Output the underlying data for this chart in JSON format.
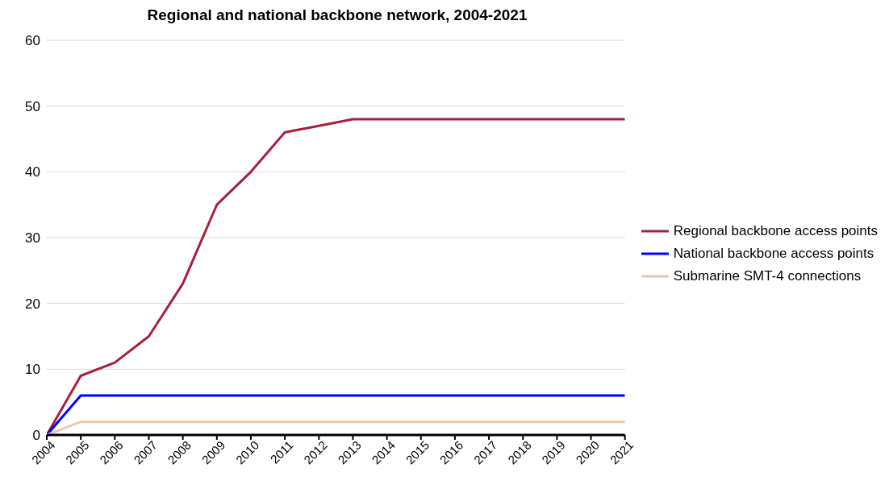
{
  "chart_data": {
    "type": "line",
    "title": "Regional and national backbone network, 2004-2021",
    "categories": [
      "2004",
      "2005",
      "2006",
      "2007",
      "2008",
      "2009",
      "2010",
      "2011",
      "2012",
      "2013",
      "2014",
      "2015",
      "2016",
      "2017",
      "2018",
      "2019",
      "2020",
      "2021"
    ],
    "series": [
      {
        "name": "Regional backbone access points",
        "color": "#a6213a",
        "values": [
          0,
          9,
          11,
          15,
          23,
          35,
          40,
          46,
          47,
          48,
          48,
          48,
          48,
          48,
          48,
          48,
          48,
          48
        ]
      },
      {
        "name": "National backbone access points",
        "color": "#0000ff",
        "values": [
          0,
          6,
          6,
          6,
          6,
          6,
          6,
          6,
          6,
          6,
          6,
          6,
          6,
          6,
          6,
          6,
          6,
          6
        ]
      },
      {
        "name": "Submarine SMT-4 connections",
        "color": "#e8c8b0",
        "values": [
          0,
          2,
          2,
          2,
          2,
          2,
          2,
          2,
          2,
          2,
          2,
          2,
          2,
          2,
          2,
          2,
          2,
          2
        ]
      }
    ],
    "ylim": [
      0,
      60
    ],
    "yticks": [
      0,
      10,
      20,
      30,
      40,
      50,
      60
    ],
    "grid": "y",
    "legend": "right",
    "marker": "none",
    "line_style": "solid"
  }
}
